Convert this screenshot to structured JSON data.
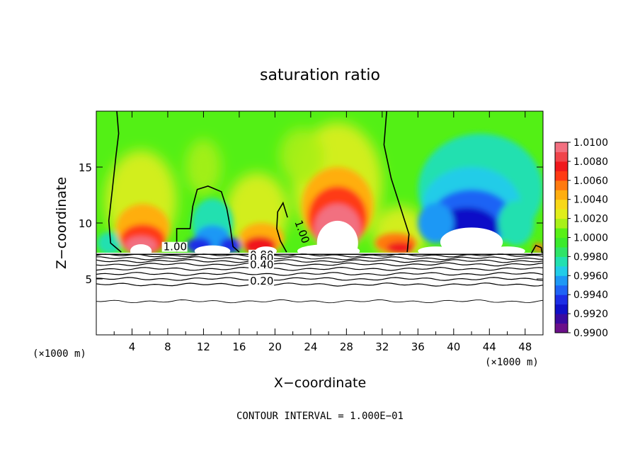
{
  "chart_data": {
    "type": "heatmap",
    "title": "saturation ratio",
    "xlabel": "X−coordinate",
    "ylabel": "Z−coordinate",
    "x_unit": "(×1000 m)",
    "z_unit": "(×1000 m)",
    "xlim": [
      0,
      50
    ],
    "ylim": [
      0,
      20
    ],
    "x_ticks": [
      "4",
      "8",
      "12",
      "16",
      "20",
      "24",
      "28",
      "32",
      "36",
      "40",
      "44",
      "48"
    ],
    "y_ticks": [
      "5",
      "10",
      "15"
    ],
    "contour_interval_label": "CONTOUR INTERVAL = 1.000E−01",
    "contour_labels": [
      "1.00",
      "1.00",
      "0.80",
      "0.60",
      "0.40",
      "0.20"
    ],
    "colorbar": {
      "ticks": [
        "1.0100",
        "1.0080",
        "1.0060",
        "1.0040",
        "1.0020",
        "1.0000",
        "0.9980",
        "0.9960",
        "0.9940",
        "0.9920",
        "0.9900"
      ]
    },
    "features": [
      {
        "x": 5,
        "z": 9,
        "value": 1.008
      },
      {
        "x": 18.5,
        "z": 8.5,
        "value": 1.007
      },
      {
        "x": 27,
        "z": 11,
        "value": 1.009
      },
      {
        "x": 34,
        "z": 8,
        "value": 1.006
      },
      {
        "x": 13,
        "z": 9,
        "value": 0.995
      },
      {
        "x": 42,
        "z": 11,
        "value": 0.991
      },
      {
        "x": 45,
        "z": 14,
        "value": 0.996
      }
    ],
    "cloud_base_z": 7.2,
    "contour_levels_below_cloud_base": [
      0.2,
      0.4,
      0.6,
      0.8,
      1.0
    ]
  }
}
